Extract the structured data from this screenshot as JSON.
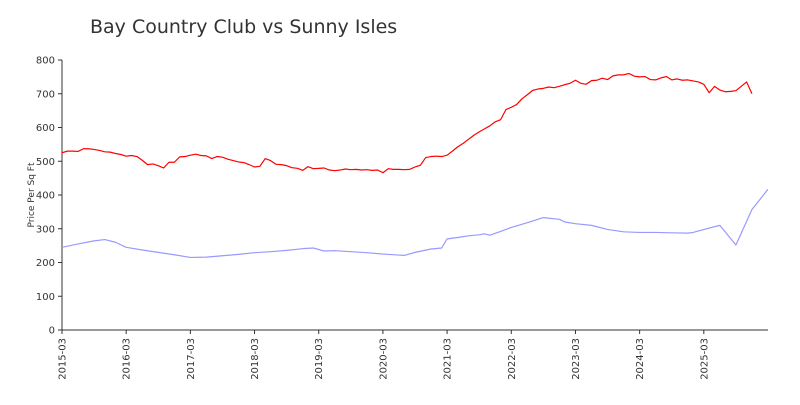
{
  "chart_data": {
    "type": "line",
    "title": "Bay Country Club vs Sunny Isles",
    "xlabel": "",
    "ylabel": "Price Per Sq Ft",
    "ylim": [
      0,
      800
    ],
    "xlim": [
      "2015-03",
      "2025-12"
    ],
    "yticks": [
      0,
      100,
      200,
      300,
      400,
      500,
      600,
      700,
      800
    ],
    "xticks": [
      "2015-03",
      "2016-03",
      "2017-03",
      "2018-03",
      "2019-03",
      "2020-03",
      "2021-03",
      "2022-03",
      "2023-03",
      "2024-03",
      "2025-03"
    ],
    "grid": false,
    "legend": "none",
    "series": [
      {
        "color": "#ff0000",
        "points": [
          [
            "2015-03",
            525
          ],
          [
            "2015-04",
            530
          ],
          [
            "2015-05",
            530
          ],
          [
            "2015-06",
            529
          ],
          [
            "2015-07",
            537
          ],
          [
            "2015-08",
            537
          ],
          [
            "2015-09",
            535
          ],
          [
            "2015-10",
            532
          ],
          [
            "2015-11",
            528
          ],
          [
            "2015-12",
            527
          ],
          [
            "2016-01",
            523
          ],
          [
            "2016-02",
            520
          ],
          [
            "2016-03",
            515
          ],
          [
            "2016-04",
            517
          ],
          [
            "2016-05",
            514
          ],
          [
            "2016-06",
            503
          ],
          [
            "2016-07",
            490
          ],
          [
            "2016-08",
            492
          ],
          [
            "2016-09",
            487
          ],
          [
            "2016-10",
            480
          ],
          [
            "2016-11",
            497
          ],
          [
            "2016-12",
            497
          ],
          [
            "2017-01",
            513
          ],
          [
            "2017-02",
            514
          ],
          [
            "2017-03",
            518
          ],
          [
            "2017-04",
            521
          ],
          [
            "2017-05",
            517
          ],
          [
            "2017-06",
            516
          ],
          [
            "2017-07",
            508
          ],
          [
            "2017-08",
            514
          ],
          [
            "2017-09",
            512
          ],
          [
            "2017-10",
            506
          ],
          [
            "2017-11",
            502
          ],
          [
            "2017-12",
            498
          ],
          [
            "2018-01",
            496
          ],
          [
            "2018-02",
            490
          ],
          [
            "2018-03",
            483
          ],
          [
            "2018-04",
            485
          ],
          [
            "2018-05",
            508
          ],
          [
            "2018-06",
            502
          ],
          [
            "2018-07",
            491
          ],
          [
            "2018-08",
            490
          ],
          [
            "2018-09",
            487
          ],
          [
            "2018-10",
            481
          ],
          [
            "2018-11",
            479
          ],
          [
            "2018-12",
            473
          ],
          [
            "2019-01",
            484
          ],
          [
            "2019-02",
            478
          ],
          [
            "2019-03",
            479
          ],
          [
            "2019-04",
            480
          ],
          [
            "2019-05",
            474
          ],
          [
            "2019-06",
            472
          ],
          [
            "2019-07",
            474
          ],
          [
            "2019-08",
            477
          ],
          [
            "2019-09",
            475
          ],
          [
            "2019-10",
            476
          ],
          [
            "2019-11",
            474
          ],
          [
            "2019-12",
            475
          ],
          [
            "2020-01",
            473
          ],
          [
            "2020-02",
            474
          ],
          [
            "2020-03",
            466
          ],
          [
            "2020-04",
            478
          ],
          [
            "2020-05",
            476
          ],
          [
            "2020-06",
            476
          ],
          [
            "2020-07",
            475
          ],
          [
            "2020-08",
            476
          ],
          [
            "2020-09",
            483
          ],
          [
            "2020-10",
            488
          ],
          [
            "2020-11",
            511
          ],
          [
            "2020-12",
            514
          ],
          [
            "2021-01",
            515
          ],
          [
            "2021-02",
            514
          ],
          [
            "2021-03",
            518
          ],
          [
            "2021-04",
            530
          ],
          [
            "2021-05",
            543
          ],
          [
            "2021-06",
            553
          ],
          [
            "2021-07",
            565
          ],
          [
            "2021-08",
            577
          ],
          [
            "2021-09",
            587
          ],
          [
            "2021-10",
            596
          ],
          [
            "2021-11",
            605
          ],
          [
            "2021-12",
            617
          ],
          [
            "2022-01",
            623
          ],
          [
            "2022-02",
            653
          ],
          [
            "2022-03",
            660
          ],
          [
            "2022-04",
            668
          ],
          [
            "2022-05",
            685
          ],
          [
            "2022-06",
            697
          ],
          [
            "2022-07",
            710
          ],
          [
            "2022-08",
            714
          ],
          [
            "2022-09",
            716
          ],
          [
            "2022-10",
            720
          ],
          [
            "2022-11",
            718
          ],
          [
            "2022-12",
            722
          ],
          [
            "2023-01",
            727
          ],
          [
            "2023-02",
            731
          ],
          [
            "2023-03",
            740
          ],
          [
            "2023-04",
            731
          ],
          [
            "2023-05",
            728
          ],
          [
            "2023-06",
            739
          ],
          [
            "2023-07",
            740
          ],
          [
            "2023-08",
            746
          ],
          [
            "2023-09",
            742
          ],
          [
            "2023-10",
            753
          ],
          [
            "2023-11",
            756
          ],
          [
            "2023-12",
            756
          ],
          [
            "2024-01",
            760
          ],
          [
            "2024-02",
            752
          ],
          [
            "2024-03",
            750
          ],
          [
            "2024-04",
            751
          ],
          [
            "2024-05",
            742
          ],
          [
            "2024-06",
            741
          ],
          [
            "2024-07",
            747
          ],
          [
            "2024-08",
            751
          ],
          [
            "2024-09",
            741
          ],
          [
            "2024-10",
            744
          ],
          [
            "2024-11",
            740
          ],
          [
            "2024-12",
            741
          ],
          [
            "2025-01",
            738
          ],
          [
            "2025-02",
            735
          ],
          [
            "2025-03",
            728
          ],
          [
            "2025-04",
            703
          ],
          [
            "2025-05",
            722
          ],
          [
            "2025-06",
            711
          ],
          [
            "2025-07",
            706
          ],
          [
            "2025-08",
            707
          ],
          [
            "2025-09",
            709
          ],
          [
            "2025-10",
            722
          ],
          [
            "2025-11",
            735
          ],
          [
            "2025-12",
            700
          ]
        ]
      },
      {
        "color": "#9999ff",
        "points": [
          [
            "2015-03",
            245
          ],
          [
            "2015-06",
            255
          ],
          [
            "2015-09",
            264
          ],
          [
            "2015-11",
            268
          ],
          [
            "2016-01",
            260
          ],
          [
            "2016-03",
            245
          ],
          [
            "2016-06",
            237
          ],
          [
            "2016-09",
            230
          ],
          [
            "2016-12",
            223
          ],
          [
            "2017-03",
            215
          ],
          [
            "2017-06",
            216
          ],
          [
            "2017-09",
            220
          ],
          [
            "2017-12",
            224
          ],
          [
            "2018-03",
            229
          ],
          [
            "2018-06",
            232
          ],
          [
            "2018-09",
            236
          ],
          [
            "2018-12",
            241
          ],
          [
            "2019-02",
            243
          ],
          [
            "2019-04",
            234
          ],
          [
            "2019-06",
            235
          ],
          [
            "2019-09",
            232
          ],
          [
            "2019-12",
            229
          ],
          [
            "2020-03",
            225
          ],
          [
            "2020-06",
            222
          ],
          [
            "2020-07",
            221
          ],
          [
            "2020-09",
            230
          ],
          [
            "2020-12",
            240
          ],
          [
            "2021-02",
            243
          ],
          [
            "2021-03",
            270
          ],
          [
            "2021-05",
            274
          ],
          [
            "2021-07",
            279
          ],
          [
            "2021-09",
            282
          ],
          [
            "2021-10",
            285
          ],
          [
            "2021-11",
            281
          ],
          [
            "2022-01",
            292
          ],
          [
            "2022-03",
            304
          ],
          [
            "2022-06",
            318
          ],
          [
            "2022-09",
            333
          ],
          [
            "2022-12",
            328
          ],
          [
            "2023-01",
            320
          ],
          [
            "2023-03",
            315
          ],
          [
            "2023-06",
            310
          ],
          [
            "2023-09",
            298
          ],
          [
            "2023-12",
            291
          ],
          [
            "2024-03",
            289
          ],
          [
            "2024-06",
            289
          ],
          [
            "2024-09",
            288
          ],
          [
            "2024-12",
            287
          ],
          [
            "2025-01",
            289
          ],
          [
            "2025-04",
            302
          ],
          [
            "2025-06",
            310
          ],
          [
            "2025-09",
            252
          ],
          [
            "2025-12",
            357
          ],
          [
            "2026-03",
            417
          ]
        ]
      }
    ]
  }
}
